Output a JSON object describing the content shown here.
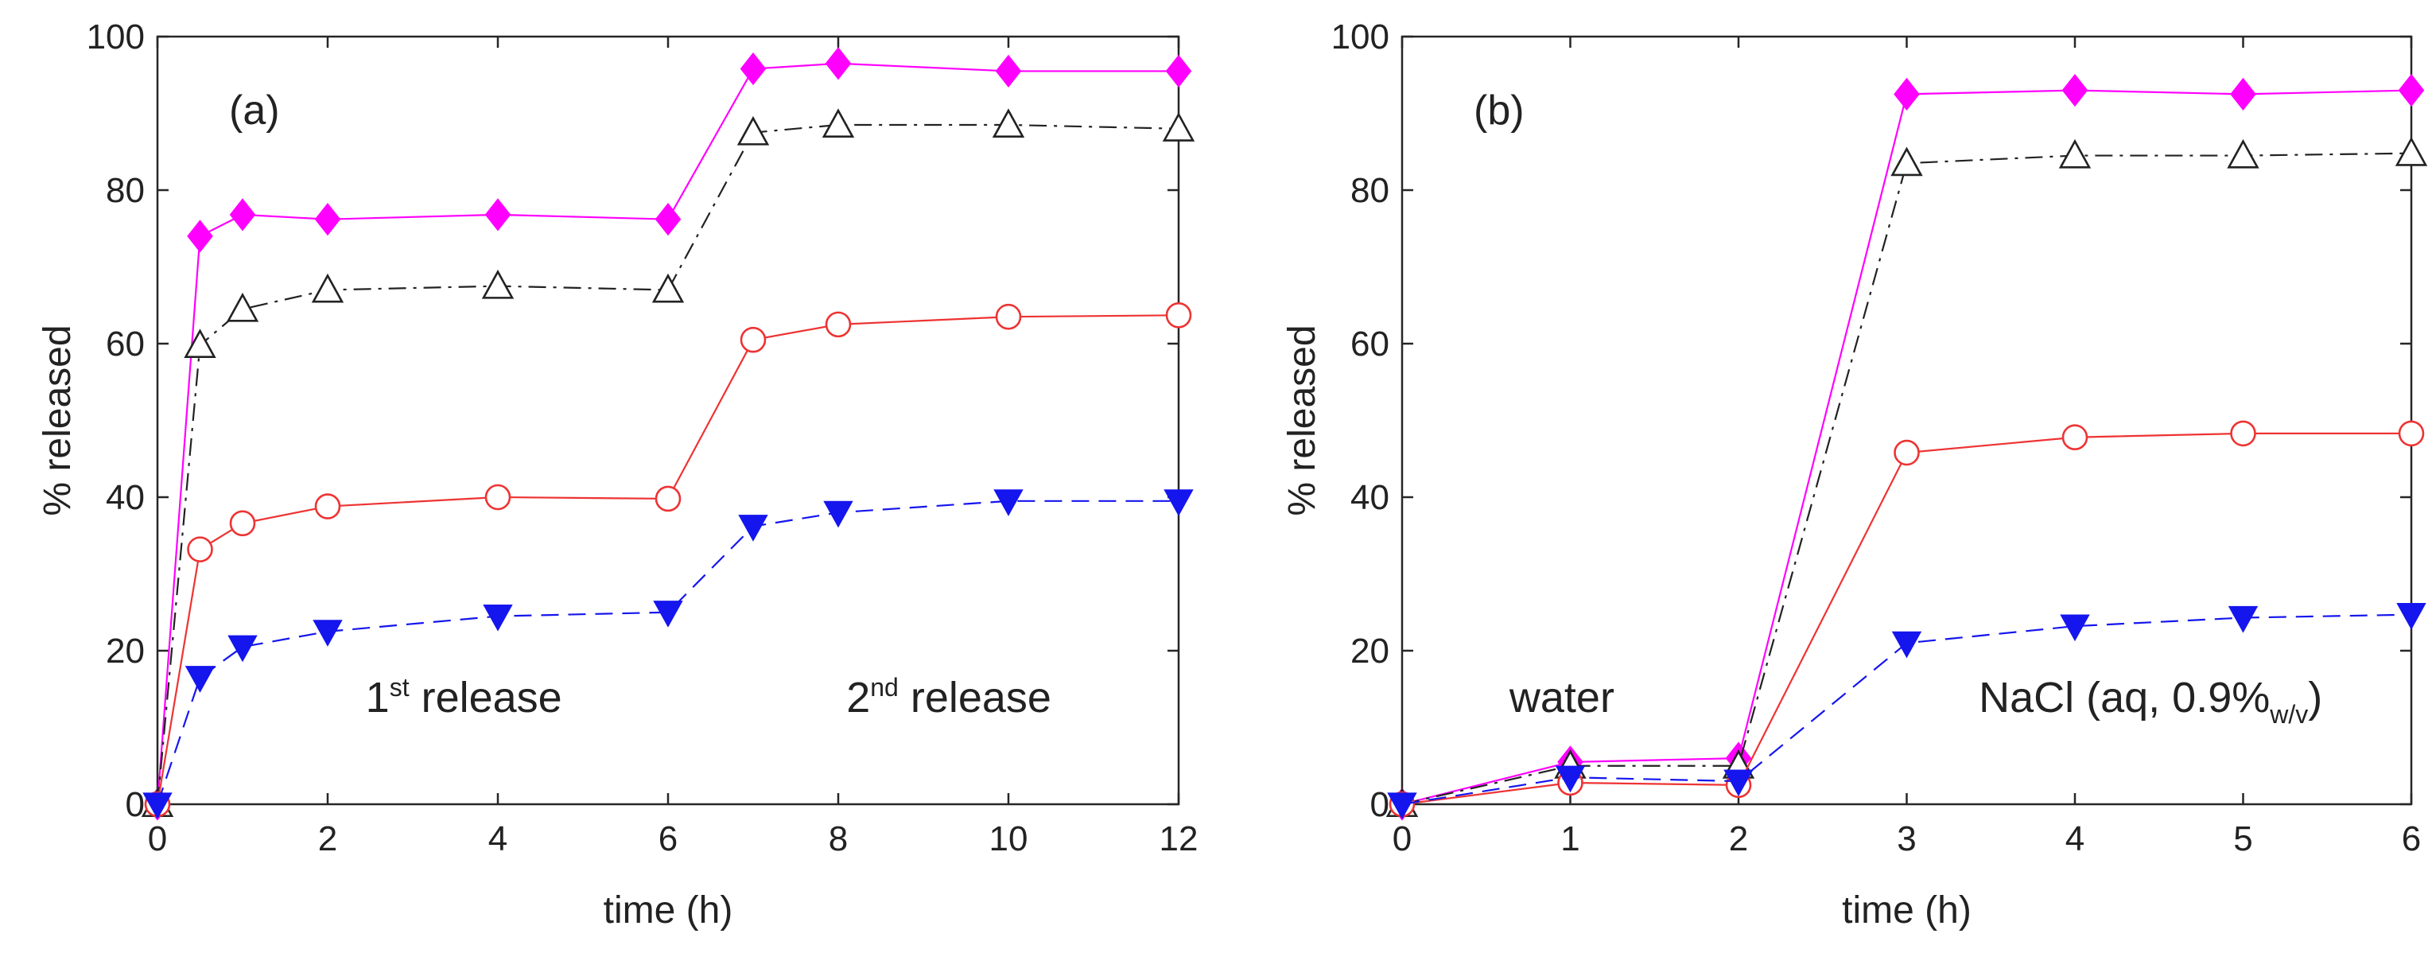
{
  "chart_data": [
    {
      "type": "line",
      "panel_label": "(a)",
      "xlabel": "time  (h)",
      "ylabel": "% released",
      "xlim": [
        0,
        12
      ],
      "ylim": [
        0,
        100
      ],
      "xticks": [
        "0",
        "2",
        "4",
        "6",
        "8",
        "10",
        "12"
      ],
      "xtick_values": [
        0,
        2,
        4,
        6,
        8,
        10,
        12
      ],
      "yticks": [
        "0",
        "20",
        "40",
        "60",
        "80",
        "100"
      ],
      "ytick_values": [
        0,
        20,
        40,
        60,
        80,
        100
      ],
      "annotations": [
        {
          "id": "first",
          "prefix": "1",
          "sup": "st",
          "suffix": " release",
          "x": 3.6,
          "y": 12
        },
        {
          "id": "second",
          "prefix": "2",
          "sup": "nd",
          "suffix": " release",
          "x": 9.3,
          "y": 12
        }
      ],
      "series": [
        {
          "name": "magenta-diamond",
          "color": "#ff00ff",
          "marker": "diamond",
          "filled": true,
          "dash": "solid",
          "x": [
            0,
            0.5,
            1,
            2,
            4,
            6,
            7,
            8,
            10,
            12
          ],
          "y": [
            0,
            74,
            76.8,
            76.2,
            76.8,
            76.2,
            95.8,
            96.5,
            95.5,
            95.5
          ]
        },
        {
          "name": "black-triangle",
          "color": "#222222",
          "marker": "triangle-up",
          "filled": false,
          "dash": "dashdot",
          "x": [
            0,
            0.5,
            1,
            2,
            4,
            6,
            7,
            8,
            10,
            12
          ],
          "y": [
            0,
            59.8,
            64.5,
            67,
            67.5,
            67,
            87.5,
            88.5,
            88.5,
            88
          ]
        },
        {
          "name": "red-circle",
          "color": "#ee3333",
          "marker": "circle",
          "filled": false,
          "dash": "solid",
          "x": [
            0,
            0.5,
            1,
            2,
            4,
            6,
            7,
            8,
            10,
            12
          ],
          "y": [
            0,
            33.2,
            36.6,
            38.8,
            40,
            39.8,
            60.5,
            62.5,
            63.5,
            63.7
          ]
        },
        {
          "name": "blue-triangle-down",
          "color": "#1515ee",
          "marker": "triangle-down",
          "filled": true,
          "dash": "dashed",
          "x": [
            0,
            0.5,
            1,
            2,
            4,
            6,
            7,
            8,
            10,
            12
          ],
          "y": [
            0,
            16.5,
            20.5,
            22.5,
            24.5,
            25,
            36.2,
            38,
            39.5,
            39.5
          ]
        }
      ]
    },
    {
      "type": "line",
      "panel_label": "(b)",
      "xlabel": "time  (h)",
      "ylabel": "% released",
      "xlim": [
        0,
        6
      ],
      "ylim": [
        0,
        100
      ],
      "xticks": [
        "0",
        "1",
        "2",
        "3",
        "4",
        "5",
        "6"
      ],
      "xtick_values": [
        0,
        1,
        2,
        3,
        4,
        5,
        6
      ],
      "yticks": [
        "0",
        "20",
        "40",
        "60",
        "80",
        "100"
      ],
      "ytick_values": [
        0,
        20,
        40,
        60,
        80,
        100
      ],
      "annotations": [
        {
          "id": "water",
          "text": "water",
          "x": 0.95,
          "y": 12
        },
        {
          "id": "nacl",
          "main": "NaCl (aq, 0.9%",
          "sub": "w/v",
          "tail": ")",
          "x": 4.45,
          "y": 12
        }
      ],
      "series": [
        {
          "name": "magenta-diamond",
          "color": "#ff00ff",
          "marker": "diamond",
          "filled": true,
          "dash": "solid",
          "x": [
            0,
            1,
            2,
            3,
            4,
            5,
            6
          ],
          "y": [
            0,
            5.5,
            6,
            92.5,
            93,
            92.5,
            93
          ]
        },
        {
          "name": "black-triangle",
          "color": "#222222",
          "marker": "triangle-up",
          "filled": false,
          "dash": "dashdot",
          "x": [
            0,
            1,
            2,
            3,
            4,
            5,
            6
          ],
          "y": [
            0,
            5,
            5,
            83.5,
            84.5,
            84.5,
            84.8
          ]
        },
        {
          "name": "red-circle",
          "color": "#ee3333",
          "marker": "circle",
          "filled": false,
          "dash": "solid",
          "x": [
            0,
            1,
            2,
            3,
            4,
            5,
            6
          ],
          "y": [
            0,
            2.8,
            2.5,
            45.8,
            47.8,
            48.3,
            48.3
          ]
        },
        {
          "name": "blue-triangle-down",
          "color": "#1515ee",
          "marker": "triangle-down",
          "filled": true,
          "dash": "dashed",
          "x": [
            0,
            1,
            2,
            3,
            4,
            5,
            6
          ],
          "y": [
            0,
            3.5,
            3,
            21,
            23.2,
            24.3,
            24.7
          ]
        }
      ]
    }
  ]
}
